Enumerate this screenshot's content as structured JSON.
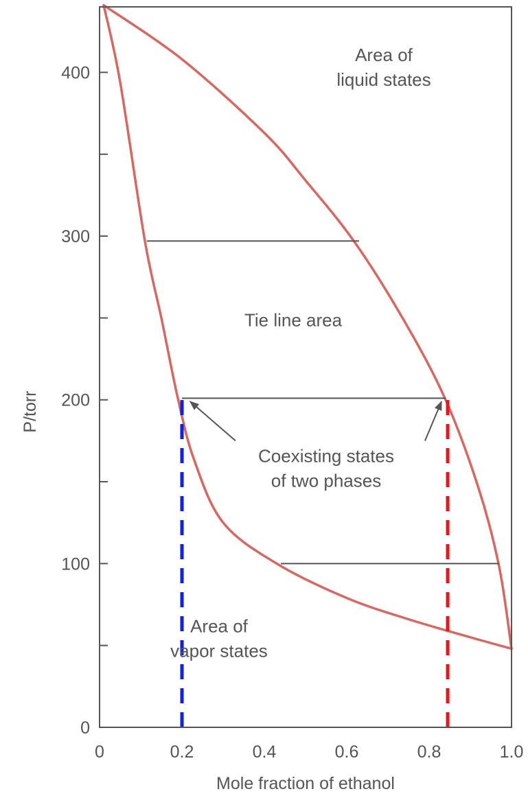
{
  "chart_data": {
    "type": "line",
    "xlabel": "Mole fraction of ethanol",
    "ylabel": "P/torr",
    "xlim": [
      0,
      1.0
    ],
    "ylim": [
      0,
      440
    ],
    "x_ticks": [
      {
        "value": 0,
        "label": "0"
      },
      {
        "value": 0.2,
        "label": "0.2"
      },
      {
        "value": 0.4,
        "label": "0.4"
      },
      {
        "value": 0.6,
        "label": "0.6"
      },
      {
        "value": 0.8,
        "label": "0.8"
      },
      {
        "value": 1.0,
        "label": "1.0"
      }
    ],
    "y_ticks": [
      {
        "value": 0,
        "label": "0"
      },
      {
        "value": 50,
        "label": ""
      },
      {
        "value": 100,
        "label": "100"
      },
      {
        "value": 150,
        "label": ""
      },
      {
        "value": 200,
        "label": "200"
      },
      {
        "value": 250,
        "label": ""
      },
      {
        "value": 300,
        "label": "300"
      },
      {
        "value": 350,
        "label": ""
      },
      {
        "value": 400,
        "label": "400"
      }
    ],
    "series": [
      {
        "color": "#d9675f",
        "points": [
          [
            0.01,
            441
          ],
          [
            0.2,
            408
          ],
          [
            0.4,
            363
          ],
          [
            0.5,
            334
          ],
          [
            0.62,
            296
          ],
          [
            0.74,
            248
          ],
          [
            0.84,
            200
          ],
          [
            0.92,
            146
          ],
          [
            0.97,
            98
          ],
          [
            1.0,
            48
          ]
        ]
      },
      {
        "color": "#d9675f",
        "points": [
          [
            0.01,
            441
          ],
          [
            0.05,
            394
          ],
          [
            0.11,
            297
          ],
          [
            0.15,
            250
          ],
          [
            0.19,
            201
          ],
          [
            0.23,
            163
          ],
          [
            0.3,
            125
          ],
          [
            0.43,
            100
          ],
          [
            0.6,
            79
          ],
          [
            0.75,
            66
          ],
          [
            0.9,
            55
          ],
          [
            1.0,
            48
          ]
        ]
      }
    ],
    "tie_lines": [
      {
        "y": 297,
        "x1": 0.115,
        "x2": 0.63
      },
      {
        "y": 201,
        "x1": 0.2,
        "x2": 0.84
      },
      {
        "y": 100,
        "x1": 0.44,
        "x2": 0.97
      }
    ],
    "dashed_lines": [
      {
        "x": 0.2,
        "y1": 0,
        "y2": 201,
        "color": "#1020e8"
      },
      {
        "x": 0.845,
        "y1": 0,
        "y2": 201,
        "color": "#e81818"
      }
    ],
    "arrows": [
      {
        "from": [
          0.33,
          175
        ],
        "to": [
          0.22,
          199
        ]
      },
      {
        "from": [
          0.79,
          175
        ],
        "to": [
          0.83,
          199
        ]
      }
    ],
    "annotations": [
      {
        "lines": [
          "Area of",
          "liquid states"
        ],
        "x": 0.69,
        "y": 407
      },
      {
        "lines": [
          "Tie line area"
        ],
        "x": 0.47,
        "y": 245
      },
      {
        "lines": [
          "Coexisting states",
          "of two phases"
        ],
        "x": 0.55,
        "y": 162
      },
      {
        "lines": [
          "Area of",
          "vapor states"
        ],
        "x": 0.29,
        "y": 58
      }
    ],
    "grid": false,
    "legend": "none"
  }
}
